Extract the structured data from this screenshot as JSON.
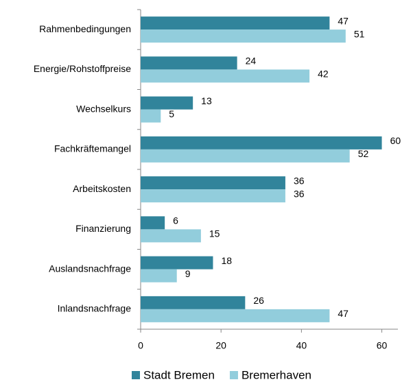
{
  "chart_data": {
    "type": "bar",
    "orientation": "horizontal",
    "categories": [
      "Rahmenbedingungen",
      "Energie/Rohstoffpreise",
      "Wechselkurs",
      "Fachkräftemangel",
      "Arbeitskosten",
      "Finanzierung",
      "Auslandsnachfrage",
      "Inlandsnachfrage"
    ],
    "series": [
      {
        "name": "Stadt Bremen",
        "color": "#31849b",
        "values": [
          47,
          24,
          13,
          60,
          36,
          6,
          18,
          26
        ]
      },
      {
        "name": "Bremerhaven",
        "color": "#92cddc",
        "values": [
          51,
          42,
          5,
          52,
          36,
          15,
          9,
          47
        ]
      }
    ],
    "xlim": [
      0,
      64
    ],
    "xticks": [
      0,
      20,
      40,
      60
    ],
    "legend": "bottom"
  }
}
